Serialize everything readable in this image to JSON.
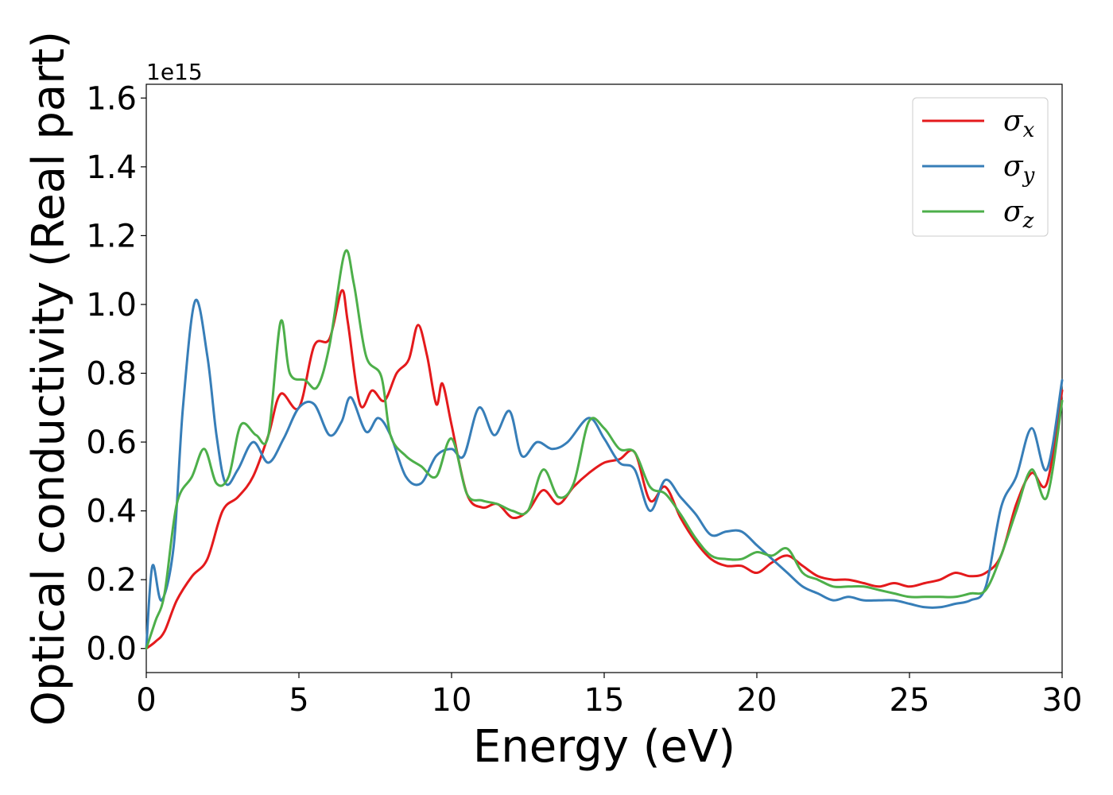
{
  "chart_data": {
    "type": "line",
    "xlabel": "Energy (eV)",
    "ylabel": "Optical conductivity (Real part)",
    "y_offset_label": "1e15",
    "xlim": [
      0,
      30
    ],
    "ylim": [
      -0.07,
      1.64
    ],
    "x_ticks": [
      0,
      5,
      10,
      15,
      20,
      25,
      30
    ],
    "x_tick_labels": [
      "0",
      "5",
      "10",
      "15",
      "20",
      "25",
      "30"
    ],
    "y_ticks": [
      0.0,
      0.2,
      0.4,
      0.6,
      0.8,
      1.0,
      1.2,
      1.4,
      1.6
    ],
    "y_tick_labels": [
      "0.0",
      "0.2",
      "0.4",
      "0.6",
      "0.8",
      "1.0",
      "1.2",
      "1.4",
      "1.6"
    ],
    "grid": false,
    "legend_position": "top-right",
    "series": [
      {
        "name": "σx",
        "legend_base": "σ",
        "legend_sub": "x",
        "color": "#e41a1c",
        "points": [
          [
            0,
            0
          ],
          [
            0.3,
            0.02
          ],
          [
            0.6,
            0.05
          ],
          [
            1.0,
            0.14
          ],
          [
            1.5,
            0.21
          ],
          [
            2.0,
            0.26
          ],
          [
            2.5,
            0.4
          ],
          [
            3.0,
            0.44
          ],
          [
            3.5,
            0.5
          ],
          [
            4.0,
            0.62
          ],
          [
            4.4,
            0.74
          ],
          [
            5.0,
            0.7
          ],
          [
            5.5,
            0.88
          ],
          [
            6.0,
            0.9
          ],
          [
            6.4,
            1.04
          ],
          [
            6.6,
            0.95
          ],
          [
            7.0,
            0.71
          ],
          [
            7.4,
            0.75
          ],
          [
            7.8,
            0.72
          ],
          [
            8.2,
            0.8
          ],
          [
            8.6,
            0.84
          ],
          [
            8.9,
            0.94
          ],
          [
            9.2,
            0.85
          ],
          [
            9.5,
            0.71
          ],
          [
            9.7,
            0.77
          ],
          [
            10.0,
            0.65
          ],
          [
            10.5,
            0.45
          ],
          [
            11.0,
            0.41
          ],
          [
            11.5,
            0.42
          ],
          [
            12.0,
            0.38
          ],
          [
            12.5,
            0.4
          ],
          [
            13.0,
            0.46
          ],
          [
            13.5,
            0.42
          ],
          [
            14.0,
            0.47
          ],
          [
            14.5,
            0.51
          ],
          [
            15.0,
            0.54
          ],
          [
            15.5,
            0.55
          ],
          [
            16.0,
            0.57
          ],
          [
            16.5,
            0.43
          ],
          [
            17.0,
            0.47
          ],
          [
            17.5,
            0.38
          ],
          [
            18.0,
            0.31
          ],
          [
            18.5,
            0.26
          ],
          [
            19.0,
            0.24
          ],
          [
            19.5,
            0.24
          ],
          [
            20.0,
            0.22
          ],
          [
            20.5,
            0.25
          ],
          [
            21.0,
            0.27
          ],
          [
            21.5,
            0.24
          ],
          [
            22.0,
            0.21
          ],
          [
            22.5,
            0.2
          ],
          [
            23.0,
            0.2
          ],
          [
            23.5,
            0.19
          ],
          [
            24.0,
            0.18
          ],
          [
            24.5,
            0.19
          ],
          [
            25.0,
            0.18
          ],
          [
            25.5,
            0.19
          ],
          [
            26.0,
            0.2
          ],
          [
            26.5,
            0.22
          ],
          [
            27.0,
            0.21
          ],
          [
            27.5,
            0.22
          ],
          [
            28.0,
            0.27
          ],
          [
            28.5,
            0.42
          ],
          [
            29.0,
            0.51
          ],
          [
            29.5,
            0.48
          ],
          [
            30.0,
            0.75
          ]
        ]
      },
      {
        "name": "σy",
        "legend_base": "σ",
        "legend_sub": "y",
        "color": "#377eb8",
        "points": [
          [
            0,
            0
          ],
          [
            0.2,
            0.24
          ],
          [
            0.5,
            0.14
          ],
          [
            0.9,
            0.3
          ],
          [
            1.2,
            0.7
          ],
          [
            1.6,
            1.01
          ],
          [
            2.0,
            0.85
          ],
          [
            2.3,
            0.62
          ],
          [
            2.6,
            0.48
          ],
          [
            3.0,
            0.52
          ],
          [
            3.5,
            0.6
          ],
          [
            4.0,
            0.54
          ],
          [
            4.5,
            0.61
          ],
          [
            5.0,
            0.7
          ],
          [
            5.5,
            0.71
          ],
          [
            6.0,
            0.62
          ],
          [
            6.4,
            0.66
          ],
          [
            6.7,
            0.73
          ],
          [
            7.2,
            0.63
          ],
          [
            7.6,
            0.67
          ],
          [
            8.0,
            0.62
          ],
          [
            8.5,
            0.5
          ],
          [
            9.0,
            0.48
          ],
          [
            9.5,
            0.56
          ],
          [
            10.0,
            0.58
          ],
          [
            10.4,
            0.56
          ],
          [
            10.9,
            0.7
          ],
          [
            11.4,
            0.62
          ],
          [
            11.9,
            0.69
          ],
          [
            12.3,
            0.56
          ],
          [
            12.8,
            0.6
          ],
          [
            13.3,
            0.58
          ],
          [
            13.8,
            0.6
          ],
          [
            14.5,
            0.67
          ],
          [
            15.0,
            0.61
          ],
          [
            15.5,
            0.54
          ],
          [
            16.0,
            0.52
          ],
          [
            16.5,
            0.4
          ],
          [
            17.0,
            0.49
          ],
          [
            17.5,
            0.44
          ],
          [
            18.0,
            0.39
          ],
          [
            18.5,
            0.33
          ],
          [
            19.0,
            0.34
          ],
          [
            19.5,
            0.34
          ],
          [
            20.0,
            0.3
          ],
          [
            20.5,
            0.26
          ],
          [
            21.0,
            0.22
          ],
          [
            21.5,
            0.18
          ],
          [
            22.0,
            0.16
          ],
          [
            22.5,
            0.14
          ],
          [
            23.0,
            0.15
          ],
          [
            23.5,
            0.14
          ],
          [
            24.0,
            0.14
          ],
          [
            24.5,
            0.14
          ],
          [
            25.0,
            0.13
          ],
          [
            25.5,
            0.12
          ],
          [
            26.0,
            0.12
          ],
          [
            26.5,
            0.13
          ],
          [
            27.0,
            0.14
          ],
          [
            27.5,
            0.18
          ],
          [
            28.0,
            0.41
          ],
          [
            28.5,
            0.5
          ],
          [
            29.0,
            0.64
          ],
          [
            29.5,
            0.52
          ],
          [
            30.0,
            0.78
          ]
        ]
      },
      {
        "name": "σz",
        "legend_base": "σ",
        "legend_sub": "z",
        "color": "#4daf4a",
        "points": [
          [
            0,
            0
          ],
          [
            0.3,
            0.08
          ],
          [
            0.6,
            0.16
          ],
          [
            1.0,
            0.42
          ],
          [
            1.5,
            0.5
          ],
          [
            1.9,
            0.58
          ],
          [
            2.3,
            0.48
          ],
          [
            2.7,
            0.5
          ],
          [
            3.1,
            0.65
          ],
          [
            3.6,
            0.62
          ],
          [
            4.0,
            0.62
          ],
          [
            4.4,
            0.95
          ],
          [
            4.7,
            0.8
          ],
          [
            5.2,
            0.78
          ],
          [
            5.6,
            0.76
          ],
          [
            6.0,
            0.88
          ],
          [
            6.5,
            1.15
          ],
          [
            6.8,
            1.06
          ],
          [
            7.2,
            0.85
          ],
          [
            7.7,
            0.79
          ],
          [
            8.0,
            0.62
          ],
          [
            8.5,
            0.56
          ],
          [
            9.0,
            0.53
          ],
          [
            9.5,
            0.5
          ],
          [
            10.0,
            0.61
          ],
          [
            10.5,
            0.45
          ],
          [
            11.0,
            0.43
          ],
          [
            11.5,
            0.42
          ],
          [
            12.0,
            0.4
          ],
          [
            12.5,
            0.4
          ],
          [
            13.0,
            0.52
          ],
          [
            13.5,
            0.44
          ],
          [
            14.0,
            0.48
          ],
          [
            14.5,
            0.66
          ],
          [
            15.0,
            0.64
          ],
          [
            15.5,
            0.58
          ],
          [
            16.0,
            0.57
          ],
          [
            16.5,
            0.47
          ],
          [
            17.0,
            0.45
          ],
          [
            17.5,
            0.39
          ],
          [
            18.0,
            0.32
          ],
          [
            18.5,
            0.27
          ],
          [
            19.0,
            0.26
          ],
          [
            19.5,
            0.26
          ],
          [
            20.0,
            0.28
          ],
          [
            20.5,
            0.27
          ],
          [
            21.0,
            0.29
          ],
          [
            21.5,
            0.22
          ],
          [
            22.0,
            0.2
          ],
          [
            22.5,
            0.18
          ],
          [
            23.0,
            0.18
          ],
          [
            23.5,
            0.18
          ],
          [
            24.0,
            0.17
          ],
          [
            24.5,
            0.16
          ],
          [
            25.0,
            0.15
          ],
          [
            25.5,
            0.15
          ],
          [
            26.0,
            0.15
          ],
          [
            26.5,
            0.15
          ],
          [
            27.0,
            0.16
          ],
          [
            27.5,
            0.17
          ],
          [
            28.0,
            0.27
          ],
          [
            28.5,
            0.4
          ],
          [
            29.0,
            0.52
          ],
          [
            29.5,
            0.44
          ],
          [
            30.0,
            0.72
          ]
        ]
      }
    ]
  }
}
